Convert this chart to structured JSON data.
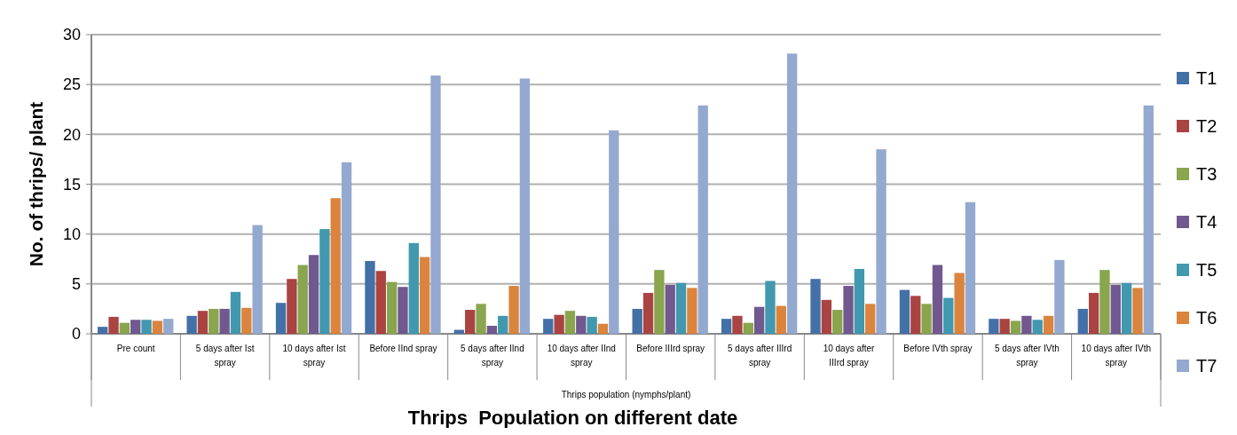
{
  "chart_data": {
    "type": "bar",
    "title": "Thrips  Population on different date",
    "xlabel": "Thrips population (nymphs/plant)",
    "ylabel": "No. of thrips/ plant",
    "categories": [
      "Pre count",
      "5 days after Ist spray",
      "10 days after Ist spray",
      "Before IInd spray",
      "5 days after IInd spray",
      "10 days after IInd spray",
      "Before IIIrd spray",
      "5 days after IIIrd spray",
      "10 days after IIIrd spray",
      "Before IVth spray",
      "5 days after IVth spray",
      "10 days after IVth spray"
    ],
    "series": [
      {
        "name": "T1",
        "color": "#4470a8",
        "values": [
          0.7,
          1.8,
          3.1,
          7.3,
          0.4,
          1.5,
          2.5,
          1.5,
          5.5,
          4.4,
          1.5,
          2.5
        ]
      },
      {
        "name": "T2",
        "color": "#aa4442",
        "values": [
          1.7,
          2.3,
          5.5,
          6.3,
          2.4,
          1.9,
          4.1,
          1.8,
          3.4,
          3.8,
          1.5,
          4.1
        ]
      },
      {
        "name": "T3",
        "color": "#89a54e",
        "values": [
          1.1,
          2.5,
          6.9,
          5.2,
          3.0,
          2.3,
          6.4,
          1.1,
          2.4,
          3.0,
          1.3,
          6.4
        ]
      },
      {
        "name": "T4",
        "color": "#71588f",
        "values": [
          1.4,
          2.5,
          7.9,
          4.7,
          0.8,
          1.8,
          4.9,
          2.7,
          4.8,
          6.9,
          1.8,
          4.9
        ]
      },
      {
        "name": "T5",
        "color": "#4198af",
        "values": [
          1.4,
          4.2,
          10.5,
          9.1,
          1.8,
          1.7,
          5.1,
          5.3,
          6.5,
          3.6,
          1.4,
          5.1
        ]
      },
      {
        "name": "T6",
        "color": "#db843d",
        "values": [
          1.3,
          2.6,
          13.6,
          7.7,
          4.8,
          1.0,
          4.6,
          2.8,
          3.0,
          6.1,
          1.8,
          4.6
        ]
      },
      {
        "name": "T7",
        "color": "#93a9cf",
        "values": [
          1.5,
          10.9,
          17.2,
          25.9,
          25.6,
          20.4,
          22.9,
          28.1,
          18.5,
          13.2,
          7.4,
          22.9
        ]
      }
    ],
    "ylim": [
      0,
      30
    ],
    "yticks": [
      0,
      5,
      10,
      15,
      20,
      25,
      30
    ],
    "grid": "y",
    "legend": "right"
  }
}
